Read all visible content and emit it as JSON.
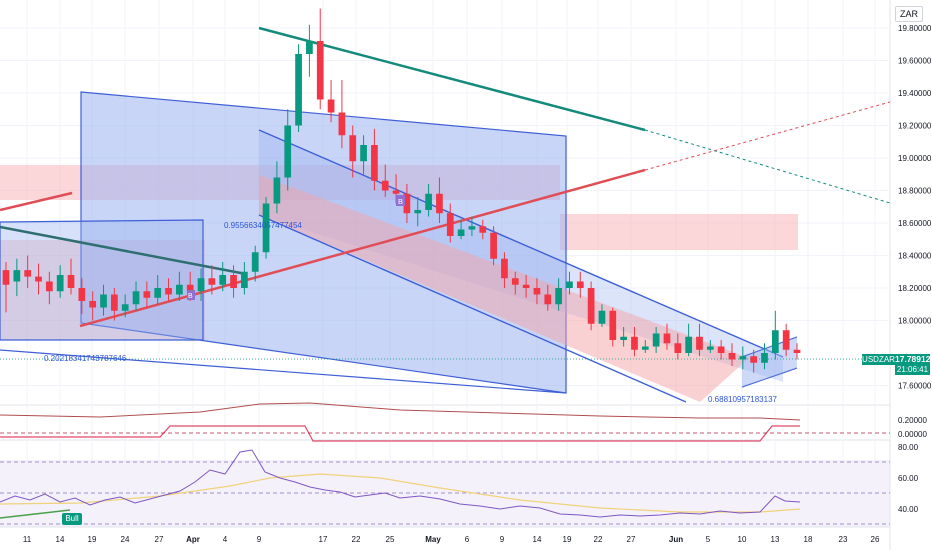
{
  "chart_data": {
    "type": "candlestick",
    "symbol": "USDZAR",
    "currency": "ZAR",
    "last_price": "17.78912",
    "countdown": "21:06:41",
    "ylim": [
      17.48,
      19.96
    ],
    "price_ticks": [
      "19.80000",
      "19.60000",
      "19.40000",
      "19.20000",
      "19.00000",
      "18.80000",
      "18.60000",
      "18.40000",
      "18.20000",
      "18.00000",
      "17.60000"
    ],
    "osc_ticks": [
      "0.20000",
      "0.00000"
    ],
    "rsi_ticks": [
      "80.00",
      "60.00",
      "40.00"
    ],
    "x_ticks": [
      "11",
      "14",
      "19",
      "24",
      "27",
      "Apr",
      "4",
      "9",
      "17",
      "22",
      "25",
      "May",
      "6",
      "9",
      "14",
      "19",
      "22",
      "27",
      "Jun",
      "5",
      "10",
      "13",
      "18",
      "23",
      "26"
    ],
    "fib_labels": [
      "0.9556634057477454",
      "0.20218341743787646",
      "0.68810957183137"
    ],
    "tag_bull": "Bull",
    "tag_b": "B",
    "candles": [
      [
        18.31,
        18.22,
        18.36,
        18.05
      ],
      [
        18.24,
        18.31,
        18.38,
        18.15
      ],
      [
        18.31,
        18.27,
        18.4,
        18.2
      ],
      [
        18.27,
        18.24,
        18.35,
        18.16
      ],
      [
        18.24,
        18.18,
        18.3,
        18.1
      ],
      [
        18.18,
        18.28,
        18.34,
        18.14
      ],
      [
        18.28,
        18.2,
        18.38,
        18.16
      ],
      [
        18.2,
        18.12,
        18.26,
        18.04
      ],
      [
        18.12,
        18.08,
        18.18,
        18.0
      ],
      [
        18.08,
        18.16,
        18.22,
        18.03
      ],
      [
        18.16,
        18.06,
        18.2,
        18.0
      ],
      [
        18.06,
        18.1,
        18.16,
        18.02
      ],
      [
        18.1,
        18.18,
        18.24,
        18.06
      ],
      [
        18.18,
        18.14,
        18.24,
        18.08
      ],
      [
        18.14,
        18.2,
        18.28,
        18.1
      ],
      [
        18.2,
        18.16,
        18.26,
        18.12
      ],
      [
        18.16,
        18.22,
        18.3,
        18.12
      ],
      [
        18.22,
        18.18,
        18.3,
        18.12
      ],
      [
        18.18,
        18.26,
        18.32,
        18.12
      ],
      [
        18.26,
        18.22,
        18.34,
        18.16
      ],
      [
        18.22,
        18.28,
        18.36,
        18.18
      ],
      [
        18.28,
        18.2,
        18.34,
        18.14
      ],
      [
        18.2,
        18.3,
        18.36,
        18.16
      ],
      [
        18.3,
        18.42,
        18.46,
        18.24
      ],
      [
        18.42,
        18.72,
        18.76,
        18.38
      ],
      [
        18.72,
        18.88,
        18.98,
        18.66
      ],
      [
        18.88,
        19.2,
        19.3,
        18.8
      ],
      [
        19.2,
        19.64,
        19.7,
        19.16
      ],
      [
        19.64,
        19.72,
        19.82,
        19.5
      ],
      [
        19.72,
        19.36,
        19.92,
        19.3
      ],
      [
        19.36,
        19.28,
        19.48,
        19.22
      ],
      [
        19.28,
        19.14,
        19.48,
        19.06
      ],
      [
        19.14,
        18.98,
        19.2,
        18.88
      ],
      [
        18.98,
        19.08,
        19.14,
        18.9
      ],
      [
        19.08,
        18.86,
        19.18,
        18.8
      ],
      [
        18.86,
        18.8,
        18.96,
        18.76
      ],
      [
        18.8,
        18.78,
        18.9,
        18.72
      ],
      [
        18.78,
        18.66,
        18.84,
        18.6
      ],
      [
        18.66,
        18.68,
        18.76,
        18.58
      ],
      [
        18.68,
        18.78,
        18.84,
        18.64
      ],
      [
        18.78,
        18.66,
        18.88,
        18.6
      ],
      [
        18.66,
        18.52,
        18.72,
        18.48
      ],
      [
        18.52,
        18.56,
        18.62,
        18.5
      ],
      [
        18.56,
        18.58,
        18.64,
        18.52
      ],
      [
        18.58,
        18.54,
        18.62,
        18.5
      ],
      [
        18.54,
        18.38,
        18.58,
        18.34
      ],
      [
        18.38,
        18.26,
        18.42,
        18.2
      ],
      [
        18.26,
        18.22,
        18.3,
        18.16
      ],
      [
        18.22,
        18.2,
        18.28,
        18.14
      ],
      [
        18.2,
        18.16,
        18.26,
        18.1
      ],
      [
        18.16,
        18.1,
        18.22,
        18.06
      ],
      [
        18.1,
        18.2,
        18.26,
        18.06
      ],
      [
        18.2,
        18.24,
        18.3,
        18.16
      ],
      [
        18.24,
        18.2,
        18.3,
        18.14
      ],
      [
        18.2,
        17.98,
        18.24,
        17.94
      ],
      [
        17.98,
        18.06,
        18.1,
        17.96
      ],
      [
        18.06,
        17.88,
        18.08,
        17.84
      ],
      [
        17.88,
        17.9,
        17.96,
        17.84
      ],
      [
        17.9,
        17.82,
        17.96,
        17.78
      ],
      [
        17.82,
        17.84,
        17.88,
        17.8
      ],
      [
        17.84,
        17.92,
        17.96,
        17.8
      ],
      [
        17.92,
        17.86,
        17.98,
        17.82
      ],
      [
        17.86,
        17.8,
        17.92,
        17.76
      ],
      [
        17.8,
        17.9,
        17.98,
        17.78
      ],
      [
        17.9,
        17.82,
        17.98,
        17.78
      ],
      [
        17.82,
        17.84,
        17.88,
        17.8
      ],
      [
        17.84,
        17.8,
        17.88,
        17.76
      ],
      [
        17.8,
        17.76,
        17.86,
        17.72
      ],
      [
        17.76,
        17.78,
        17.84,
        17.7
      ],
      [
        17.78,
        17.74,
        17.82,
        17.68
      ],
      [
        17.74,
        17.8,
        17.86,
        17.7
      ],
      [
        17.8,
        17.94,
        18.06,
        17.76
      ],
      [
        17.94,
        17.82,
        17.98,
        17.78
      ],
      [
        17.82,
        17.8,
        17.86,
        17.76
      ]
    ]
  }
}
